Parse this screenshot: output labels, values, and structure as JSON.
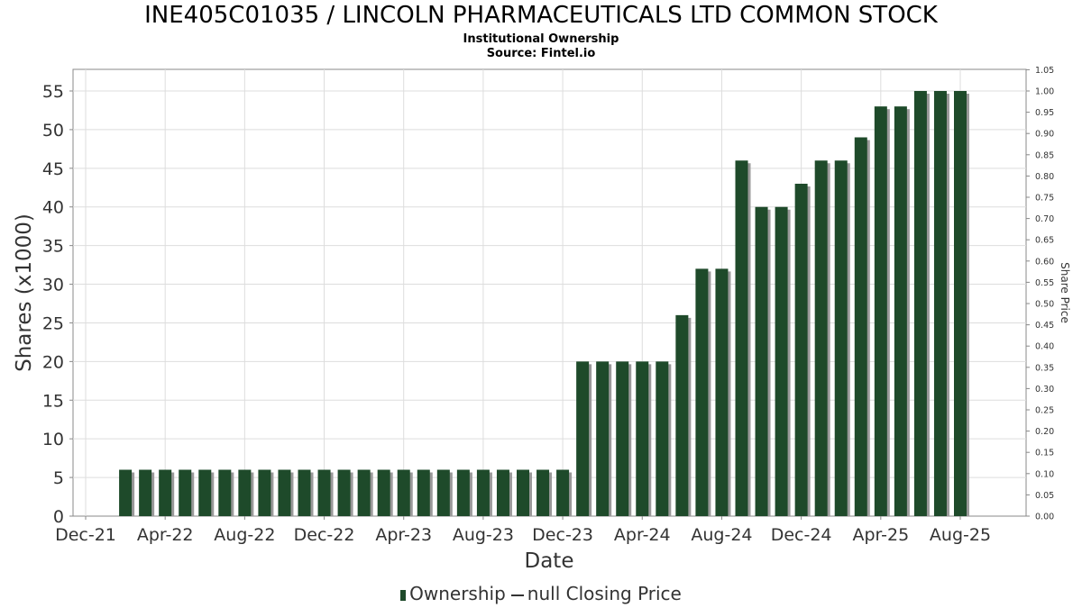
{
  "titles": {
    "main": "INE405C01035 / LINCOLN PHARMACEUTICALS LTD COMMON STOCK",
    "sub1": "Institutional Ownership",
    "sub2": "Source: Fintel.io"
  },
  "legend": {
    "ownership": "Ownership",
    "closing_price": "null Closing Price"
  },
  "colors": {
    "bar": "#1e4a2a",
    "bar_shadow": "#999999",
    "grid": "#dddddd",
    "axis": "#888888"
  },
  "chart_data": {
    "type": "bar",
    "xlabel": "Date",
    "ylabel": "Shares (x1000)",
    "y2label": "Share Price",
    "ylim": [
      0,
      58
    ],
    "y2lim": [
      0,
      1.05
    ],
    "yticks": [
      0,
      5,
      10,
      15,
      20,
      25,
      30,
      35,
      40,
      45,
      50,
      55
    ],
    "y2ticks": [
      "0.00",
      "0.05",
      "0.10",
      "0.15",
      "0.20",
      "0.25",
      "0.30",
      "0.35",
      "0.40",
      "0.45",
      "0.50",
      "0.55",
      "0.60",
      "0.65",
      "0.70",
      "0.75",
      "0.80",
      "0.85",
      "0.90",
      "0.95",
      "1.00",
      "1.05"
    ],
    "xticks": [
      "Dec-21",
      "Apr-22",
      "Aug-22",
      "Dec-22",
      "Apr-23",
      "Aug-23",
      "Dec-23",
      "Apr-24",
      "Aug-24",
      "Dec-24",
      "Apr-25",
      "Aug-25"
    ],
    "grid": true,
    "legend_position": "bottom",
    "series": [
      {
        "name": "Ownership",
        "values": [
          6,
          6,
          6,
          6,
          6,
          6,
          6,
          6,
          6,
          6,
          6,
          6,
          6,
          6,
          6,
          6,
          6,
          6,
          6,
          6,
          6,
          6,
          6,
          20,
          20,
          20,
          20,
          20,
          26,
          32,
          32,
          46,
          40,
          40,
          43,
          46,
          46,
          49,
          53,
          53,
          55,
          55,
          55
        ]
      }
    ]
  }
}
